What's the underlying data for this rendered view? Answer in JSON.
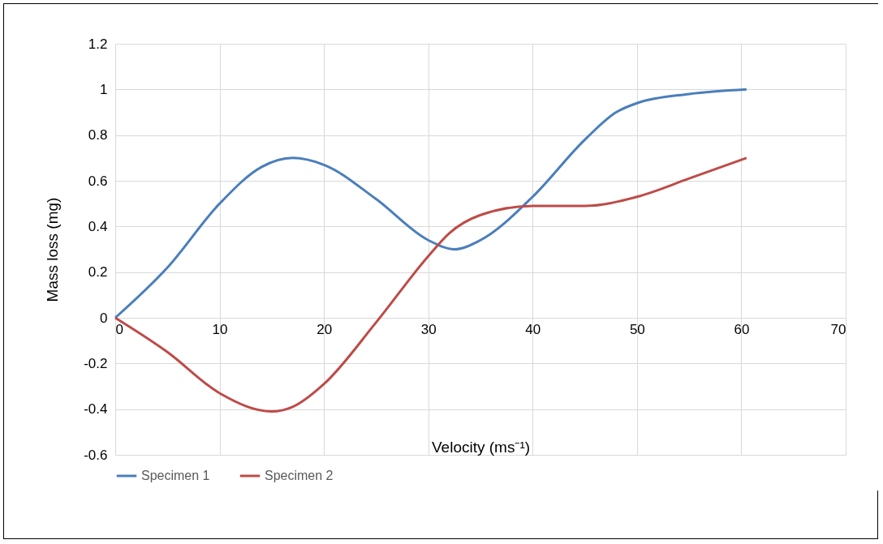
{
  "chart_data": {
    "type": "line",
    "xlabel": "Velocity (ms⁻¹)",
    "ylabel": "Mass loss (mg)",
    "xlim": [
      0,
      70
    ],
    "xticks": [
      0,
      10,
      20,
      30,
      40,
      50,
      60,
      70
    ],
    "ylim": [
      -0.6,
      1.2
    ],
    "yticks": [
      -0.6,
      -0.4,
      -0.2,
      0,
      0.2,
      0.4,
      0.6,
      0.8,
      1,
      1.2
    ],
    "grid": true,
    "legend": "bottom",
    "line_style": "solid",
    "marker": "none",
    "series": [
      {
        "name": "Specimen 1",
        "color": "#4a7ebb",
        "x": [
          0,
          5,
          10,
          14,
          17,
          20,
          25,
          30,
          32.5,
          35,
          40,
          45,
          48,
          50,
          55,
          60.5
        ],
        "values": [
          0,
          0.22,
          0.5,
          0.66,
          0.7,
          0.67,
          0.52,
          0.34,
          0.3,
          0.34,
          0.53,
          0.78,
          0.9,
          0.94,
          0.98,
          1
        ]
      },
      {
        "name": "Specimen 2",
        "color": "#be4b48",
        "x": [
          0,
          5,
          10,
          15,
          17,
          20,
          25,
          30,
          32,
          35,
          40,
          45,
          50,
          55,
          60.5
        ],
        "values": [
          0,
          -0.15,
          -0.33,
          -0.41,
          -0.39,
          -0.29,
          -0.02,
          0.27,
          0.37,
          0.45,
          0.49,
          0.49,
          0.53,
          0.61,
          0.7
        ]
      }
    ]
  }
}
